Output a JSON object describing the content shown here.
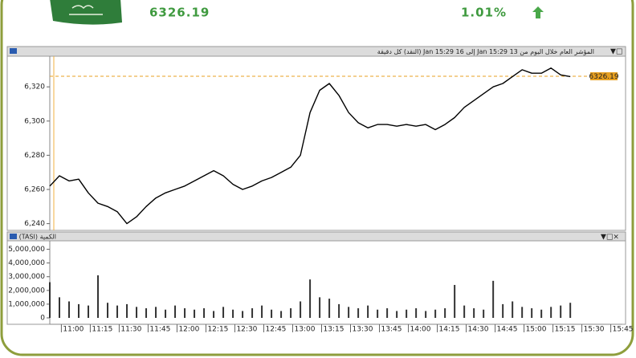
{
  "header": {
    "price": "6326.19",
    "change": "1.01%"
  },
  "chart_data": [
    {
      "type": "line",
      "title": "المؤشر العام خلال اليوم من 13 Jan 15:29 إلى 16 Jan 15:29 (النقد) كل دقيقة",
      "x": [
        654,
        659,
        664,
        669,
        674,
        679,
        684,
        689,
        694,
        699,
        704,
        709,
        714,
        719,
        724,
        729,
        734,
        739,
        744,
        749,
        754,
        759,
        764,
        769,
        774,
        779,
        784,
        789,
        794,
        799,
        804,
        809,
        814,
        819,
        824,
        829,
        834,
        839,
        844,
        849,
        854,
        859,
        864,
        869,
        874,
        879,
        884,
        889,
        894,
        899,
        904,
        909,
        914,
        919,
        924
      ],
      "values": [
        6262,
        6268,
        6265,
        6266,
        6258,
        6252,
        6250,
        6247,
        6240,
        6244,
        6250,
        6255,
        6258,
        6260,
        6262,
        6265,
        6268,
        6271,
        6268,
        6263,
        6260,
        6262,
        6265,
        6267,
        6270,
        6273,
        6280,
        6305,
        6318,
        6322,
        6315,
        6305,
        6299,
        6296,
        6298,
        6298,
        6297,
        6298,
        6297,
        6298,
        6295,
        6298,
        6302,
        6308,
        6312,
        6316,
        6320,
        6322,
        6326,
        6330,
        6328,
        6328,
        6331,
        6327,
        6326
      ],
      "color": "#000000",
      "xlim": [
        654,
        951
      ],
      "ylim": [
        6237,
        6337
      ],
      "yticks": [
        {
          "value": 6240,
          "label": "6,240"
        },
        {
          "value": 6260,
          "label": "6,260"
        },
        {
          "value": 6280,
          "label": "6,280"
        },
        {
          "value": 6300,
          "label": "6,300"
        },
        {
          "value": 6320,
          "label": "6,320"
        }
      ],
      "reference_line": 6326.19,
      "reference_color": "#e8a020"
    },
    {
      "type": "bar",
      "title": "الكمية (TASI)",
      "x": [
        654,
        659,
        664,
        669,
        674,
        679,
        684,
        689,
        694,
        699,
        704,
        709,
        714,
        719,
        724,
        729,
        734,
        739,
        744,
        749,
        754,
        759,
        764,
        769,
        774,
        779,
        784,
        789,
        794,
        799,
        804,
        809,
        814,
        819,
        824,
        829,
        834,
        839,
        844,
        849,
        854,
        859,
        864,
        869,
        874,
        879,
        884,
        889,
        894,
        899,
        904,
        909,
        914,
        919,
        924
      ],
      "values": [
        2600000,
        1500000,
        1200000,
        1000000,
        900000,
        3100000,
        1100000,
        900000,
        1000000,
        800000,
        700000,
        800000,
        600000,
        900000,
        700000,
        600000,
        700000,
        500000,
        800000,
        600000,
        500000,
        700000,
        900000,
        600000,
        500000,
        700000,
        1200000,
        2800000,
        1500000,
        1400000,
        1000000,
        800000,
        700000,
        900000,
        600000,
        700000,
        500000,
        600000,
        700000,
        500000,
        600000,
        700000,
        2400000,
        900000,
        700000,
        600000,
        2700000,
        1000000,
        1200000,
        800000,
        700000,
        600000,
        800000,
        900000,
        1100000
      ],
      "color": "#333333",
      "xlim": [
        654,
        951
      ],
      "ylim": [
        0,
        5500000
      ],
      "yticks": [
        0,
        {
          "value": 1000000,
          "label": "1,000,000"
        },
        {
          "value": 2000000,
          "label": "2,000,000"
        },
        {
          "value": 3000000,
          "label": "3,000,000"
        },
        {
          "value": 4000000,
          "label": "4,000,000"
        },
        {
          "value": 5000000,
          "label": "5,000,000"
        }
      ],
      "xticks": [
        {
          "value": 660,
          "label": "11:00"
        },
        {
          "value": 675,
          "label": "11:15"
        },
        {
          "value": 690,
          "label": "11:30"
        },
        {
          "value": 705,
          "label": "11:45"
        },
        {
          "value": 720,
          "label": "12:00"
        },
        {
          "value": 735,
          "label": "12:15"
        },
        {
          "value": 750,
          "label": "12:30"
        },
        {
          "value": 765,
          "label": "12:45"
        },
        {
          "value": 780,
          "label": "13:00"
        },
        {
          "value": 795,
          "label": "13:15"
        },
        {
          "value": 810,
          "label": "13:30"
        },
        {
          "value": 825,
          "label": "13:45"
        },
        {
          "value": 840,
          "label": "14:00"
        },
        {
          "value": 855,
          "label": "14:15"
        },
        {
          "value": 870,
          "label": "14:30"
        },
        {
          "value": 885,
          "label": "14:45"
        },
        {
          "value": 900,
          "label": "15:00"
        },
        {
          "value": 915,
          "label": "15:15"
        },
        {
          "value": 930,
          "label": "15:30"
        },
        {
          "value": 945,
          "label": "15:45"
        }
      ]
    }
  ]
}
